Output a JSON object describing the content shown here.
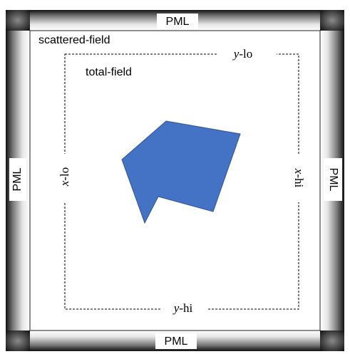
{
  "diagram": {
    "pml_labels": {
      "top": "PML",
      "bottom": "PML",
      "left": "PML",
      "right": "PML"
    },
    "regions": {
      "scattered_field": "scattered-field",
      "total_field": "total-field"
    },
    "boundaries": {
      "y_lo": {
        "var": "y",
        "suffix": "-lo"
      },
      "y_hi": {
        "var": "y",
        "suffix": "-hi"
      },
      "x_lo": {
        "var": "x",
        "suffix": "-lo"
      },
      "x_hi": {
        "var": "x",
        "suffix": "-hi"
      }
    },
    "colors": {
      "scatterer_fill": "#4472c4",
      "scatterer_stroke": "#2f5597",
      "pml_dark": "#111111",
      "pml_light": "#ffffff",
      "dashed_line": "#000000"
    }
  }
}
